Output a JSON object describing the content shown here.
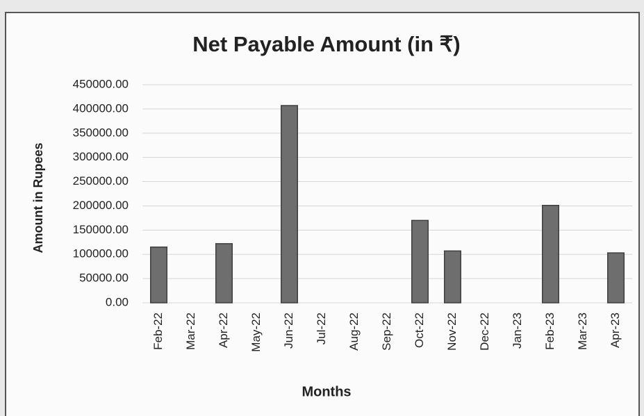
{
  "chart_data": {
    "type": "bar",
    "title": "Net Payable Amount (in ₹)",
    "x_label": "Months",
    "y_label": "Amount in Rupees",
    "categories": [
      "Feb-22",
      "Mar-22",
      "Apr-22",
      "May-22",
      "Jun-22",
      "Jul-22",
      "Aug-22",
      "Sep-22",
      "Oct-22",
      "Nov-22",
      "Dec-22",
      "Jan-23",
      "Feb-23",
      "Mar-23",
      "Apr-23"
    ],
    "values": [
      115000,
      0,
      122000,
      0,
      407000,
      0,
      0,
      0,
      170000,
      107000,
      0,
      0,
      201000,
      0,
      103000
    ],
    "color": "#6e6e6e",
    "ylim": [
      0,
      450000
    ],
    "yticks": [
      {
        "value": 0,
        "label": "0.00"
      },
      {
        "value": 50000,
        "label": "50000.00"
      },
      {
        "value": 100000,
        "label": "100000.00"
      },
      {
        "value": 150000,
        "label": "150000.00"
      },
      {
        "value": 200000,
        "label": "200000.00"
      },
      {
        "value": 250000,
        "label": "250000.00"
      },
      {
        "value": 300000,
        "label": "300000.00"
      },
      {
        "value": 350000,
        "label": "350000.00"
      },
      {
        "value": 400000,
        "label": "400000.00"
      },
      {
        "value": 450000,
        "label": "450000.00"
      }
    ],
    "grid": true
  }
}
